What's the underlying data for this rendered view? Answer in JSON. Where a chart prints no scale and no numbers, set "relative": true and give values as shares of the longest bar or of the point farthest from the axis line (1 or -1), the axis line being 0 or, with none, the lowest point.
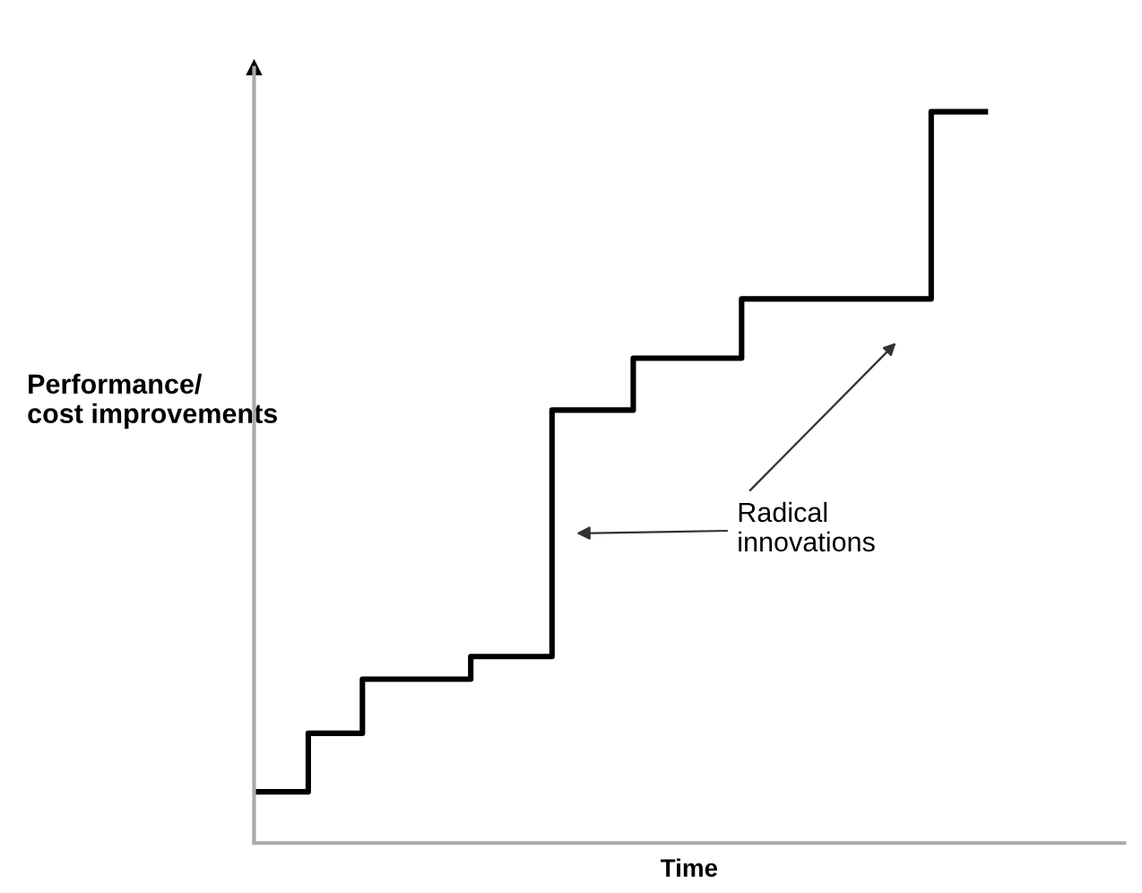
{
  "chart_data": {
    "type": "step",
    "relative": true,
    "xlabel": "Time",
    "ylabel": "Performance/\ncost improvements",
    "annotations": [
      "Radical\ninnovations"
    ],
    "categories": [
      null,
      null,
      null,
      null,
      null,
      null,
      null,
      null,
      null,
      null,
      null,
      null,
      null,
      null,
      null,
      null,
      null,
      null,
      null,
      null,
      null,
      null,
      null,
      null,
      null,
      null,
      null,
      null
    ],
    "series": [
      {
        "color": "#000000",
        "values": [
          0.07,
          0.07,
          0.15,
          0.15,
          0.224,
          0.224,
          0.224,
          0.224,
          0.255,
          0.255,
          0.255,
          0.592,
          0.592,
          0.592,
          0.663,
          0.663,
          0.663,
          0.663,
          0.744,
          0.744,
          0.744,
          0.744,
          0.744,
          0.744,
          0.744,
          1,
          1,
          1
        ]
      }
    ],
    "grid": false
  }
}
